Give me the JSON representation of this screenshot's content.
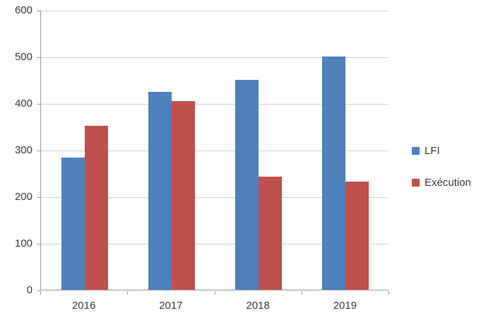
{
  "chart_data": {
    "type": "bar",
    "title": "",
    "xlabel": "",
    "ylabel": "",
    "categories": [
      "2016",
      "2017",
      "2018",
      "2019"
    ],
    "series": [
      {
        "name": "LFI",
        "color": "#4F81BD",
        "values": [
          283,
          424,
          450,
          500
        ]
      },
      {
        "name": "Exécution",
        "color": "#C0504D",
        "values": [
          352,
          405,
          243,
          232
        ]
      }
    ],
    "ylim": [
      0,
      600
    ],
    "yticks": [
      0,
      100,
      200,
      300,
      400,
      500,
      600
    ],
    "grid": true,
    "legend_position": "right"
  },
  "colors": {
    "axis": "#9c9c9c",
    "gridline": "#d2d2d2",
    "text": "#3a3a3a"
  }
}
